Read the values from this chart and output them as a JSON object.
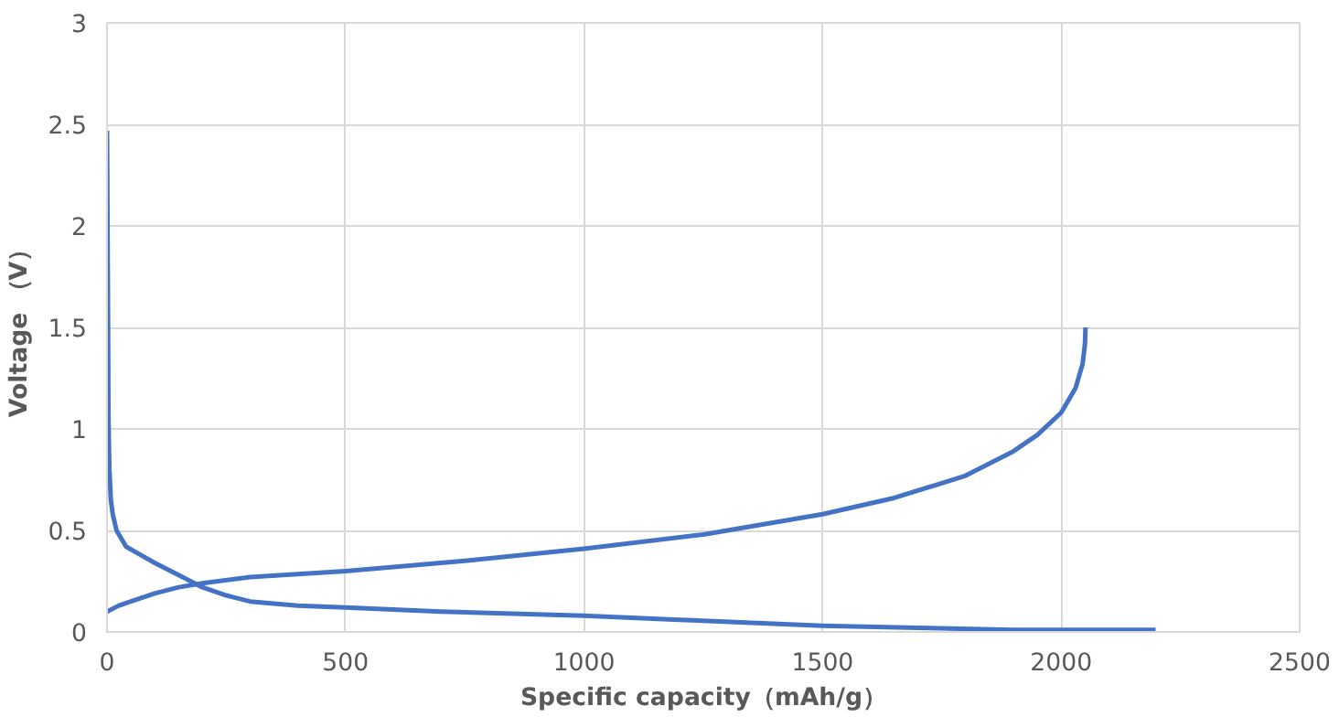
{
  "chart_data": {
    "type": "line",
    "xlabel": "Specific capacity（mAh/g）",
    "ylabel": "Voltage （V）",
    "xlim": [
      0,
      2500
    ],
    "ylim": [
      0,
      3
    ],
    "xticks": [
      0,
      500,
      1000,
      1500,
      2000,
      2500
    ],
    "yticks": [
      0,
      0.5,
      1,
      1.5,
      2,
      2.5,
      3
    ],
    "grid": true,
    "marker": "none",
    "line_style": "solid",
    "series": [
      {
        "color": "#4472c4",
        "x": [
          0,
          2,
          3,
          5,
          8,
          12,
          20,
          40,
          70,
          100,
          150,
          200,
          250,
          300,
          400,
          500,
          700,
          1000,
          1200,
          1500,
          1700,
          1900,
          2198
        ],
        "values": [
          2.47,
          1.6,
          1.05,
          0.8,
          0.65,
          0.58,
          0.5,
          0.42,
          0.38,
          0.34,
          0.28,
          0.22,
          0.18,
          0.15,
          0.13,
          0.12,
          0.1,
          0.08,
          0.06,
          0.03,
          0.02,
          0.01,
          0.01
        ]
      },
      {
        "color": "#4472c4",
        "x": [
          0,
          25,
          50,
          100,
          150,
          200,
          300,
          500,
          750,
          1000,
          1250,
          1500,
          1650,
          1800,
          1900,
          1950,
          2000,
          2030,
          2045,
          2050,
          2051
        ],
        "values": [
          0.1,
          0.13,
          0.15,
          0.19,
          0.22,
          0.24,
          0.27,
          0.3,
          0.35,
          0.41,
          0.48,
          0.58,
          0.66,
          0.77,
          0.89,
          0.97,
          1.08,
          1.2,
          1.32,
          1.42,
          1.5
        ]
      }
    ]
  }
}
